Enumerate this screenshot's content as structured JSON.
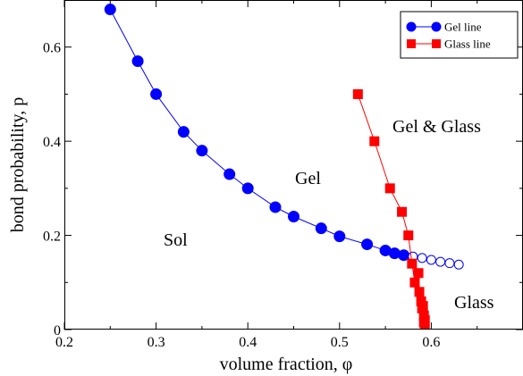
{
  "chart_data": {
    "type": "scatter",
    "xlabel": "volume fraction, φ",
    "ylabel": "bond probability, p",
    "xlim": [
      0.2,
      0.7
    ],
    "ylim": [
      0,
      0.7
    ],
    "xticks": [
      "0.2",
      "0.3",
      "0.4",
      "0.5",
      "0.6"
    ],
    "yticks": [
      "0",
      "0.2",
      "0.4",
      "0.6"
    ],
    "grid": false,
    "legend_position": "top-right",
    "series": [
      {
        "name": "Gel line",
        "color": "#0000ff",
        "marker": "circle",
        "x": [
          0.25,
          0.28,
          0.3,
          0.33,
          0.35,
          0.38,
          0.4,
          0.43,
          0.45,
          0.48,
          0.5,
          0.53,
          0.55,
          0.56,
          0.57
        ],
        "y": [
          0.68,
          0.57,
          0.5,
          0.42,
          0.38,
          0.33,
          0.3,
          0.26,
          0.24,
          0.215,
          0.198,
          0.181,
          0.168,
          0.162,
          0.158
        ]
      },
      {
        "name": "",
        "color": "#0000ff",
        "marker": "open-circle",
        "x": [
          0.58,
          0.59,
          0.6,
          0.61,
          0.62,
          0.63
        ],
        "y": [
          0.155,
          0.152,
          0.148,
          0.144,
          0.141,
          0.138
        ]
      },
      {
        "name": "Glass line",
        "color": "#ff0000",
        "marker": "square",
        "x": [
          0.52,
          0.538,
          0.555,
          0.568,
          0.575,
          0.579,
          0.582,
          0.586,
          0.587,
          0.589,
          0.59,
          0.591,
          0.592,
          0.592,
          0.593,
          0.593
        ],
        "y": [
          0.5,
          0.4,
          0.3,
          0.25,
          0.2,
          0.14,
          0.1,
          0.12,
          0.08,
          0.06,
          0.045,
          0.05,
          0.03,
          0.015,
          0.02,
          0.0
        ]
      }
    ],
    "annotations": [
      {
        "text": "Sol",
        "x": 0.2,
        "y": 0.2
      },
      {
        "text": "Gel",
        "x": 0.37,
        "y": 0.33
      },
      {
        "text": "Gel & Glass",
        "x": 0.545,
        "y": 0.44
      },
      {
        "text": "Glass",
        "x": 0.615,
        "y": 0.05
      }
    ]
  }
}
